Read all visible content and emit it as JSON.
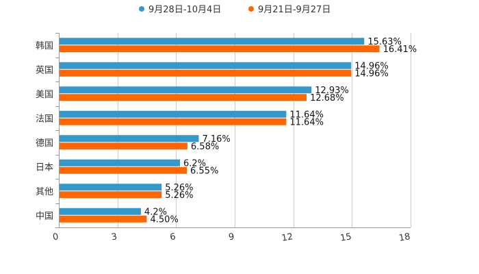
{
  "chart_data": {
    "type": "bar",
    "orientation": "horizontal",
    "categories": [
      "韩国",
      "英国",
      "美国",
      "法国",
      "德国",
      "日本",
      "其他",
      "中国"
    ],
    "series": [
      {
        "name": "9月28日-10月4日",
        "color": "#3399cc",
        "values": [
          15.63,
          14.96,
          12.93,
          11.64,
          7.16,
          6.2,
          5.26,
          4.2
        ],
        "labels": [
          "15.63%",
          "14.96%",
          "12.93%",
          "11.64%",
          "7.16%",
          "6.2%",
          "5.26%",
          "4.2%"
        ]
      },
      {
        "name": "9月21日-9月27日",
        "color": "#ff6600",
        "values": [
          16.41,
          14.96,
          12.68,
          11.64,
          6.58,
          6.55,
          5.26,
          4.5
        ],
        "labels": [
          "16.41%",
          "14.96%",
          "12.68%",
          "11.64%",
          "6.58%",
          "6.55%",
          "5.26%",
          "4.50%"
        ]
      }
    ],
    "xlim": [
      0,
      18
    ],
    "xticks": [
      0,
      3,
      6,
      9,
      12,
      15,
      18
    ],
    "xtick_labels": [
      "0",
      "3",
      "6",
      "9",
      "12",
      "15",
      "18"
    ],
    "grid": "vertical",
    "legend": "top-center",
    "title": "",
    "xlabel": "",
    "ylabel": ""
  }
}
